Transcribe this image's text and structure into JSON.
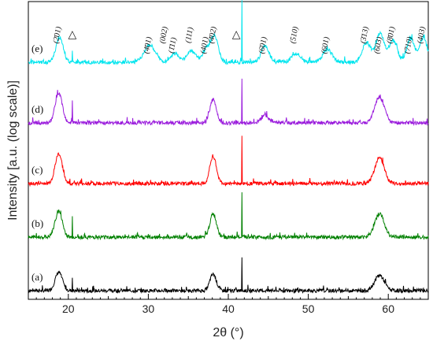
{
  "chart_data": {
    "type": "line",
    "title": "",
    "xlabel": "2θ (°)",
    "ylabel": "Intensity [a.u. (log scale)]",
    "xlim": [
      15,
      65
    ],
    "x_ticks": [
      20,
      30,
      40,
      50,
      60
    ],
    "x_tick_labels": [
      "20",
      "30",
      "40",
      "50",
      "60"
    ],
    "y_ticks": false,
    "grid": false,
    "legend": false,
    "series": [
      {
        "name": "(a)",
        "color": "#000000",
        "peaks": [
          {
            "x": 18.8,
            "h": 0.3,
            "w": 0.45
          },
          {
            "x": 38.1,
            "h": 0.27,
            "w": 0.4
          },
          {
            "x": 58.9,
            "h": 0.25,
            "w": 0.6
          }
        ],
        "spikes": [
          {
            "x": 20.5,
            "h": 0.22
          },
          {
            "x": 41.7,
            "h": 0.55
          }
        ]
      },
      {
        "name": "(b)",
        "color": "#008000",
        "peaks": [
          {
            "x": 18.8,
            "h": 0.42,
            "w": 0.45
          },
          {
            "x": 38.1,
            "h": 0.38,
            "w": 0.4
          },
          {
            "x": 58.9,
            "h": 0.38,
            "w": 0.6
          }
        ],
        "spikes": [
          {
            "x": 20.5,
            "h": 0.36
          },
          {
            "x": 41.7,
            "h": 0.75
          }
        ]
      },
      {
        "name": "(c)",
        "color": "#ff0000",
        "peaks": [
          {
            "x": 18.8,
            "h": 0.48,
            "w": 0.45
          },
          {
            "x": 38.1,
            "h": 0.45,
            "w": 0.4
          },
          {
            "x": 58.9,
            "h": 0.42,
            "w": 0.6
          }
        ],
        "spikes": [
          {
            "x": 41.7,
            "h": 0.75
          }
        ]
      },
      {
        "name": "(d)",
        "color": "#9a1bdc",
        "peaks": [
          {
            "x": 18.8,
            "h": 0.48,
            "w": 0.45
          },
          {
            "x": 38.1,
            "h": 0.38,
            "w": 0.4
          },
          {
            "x": 44.6,
            "h": 0.12,
            "w": 0.5
          },
          {
            "x": 58.9,
            "h": 0.42,
            "w": 0.6
          }
        ],
        "spikes": [
          {
            "x": 20.5,
            "h": 0.38
          },
          {
            "x": 41.7,
            "h": 0.75
          }
        ]
      },
      {
        "name": "(e)",
        "color": "#00e5ee",
        "peaks": [
          {
            "x": 18.9,
            "h": 0.4,
            "w": 0.45
          },
          {
            "x": 30.2,
            "h": 0.28,
            "w": 0.7
          },
          {
            "x": 33.3,
            "h": 0.14,
            "w": 0.5
          },
          {
            "x": 35.4,
            "h": 0.18,
            "w": 0.6
          },
          {
            "x": 37.3,
            "h": 0.22,
            "w": 0.45
          },
          {
            "x": 38.3,
            "h": 0.42,
            "w": 0.45
          },
          {
            "x": 44.6,
            "h": 0.26,
            "w": 0.5
          },
          {
            "x": 48.5,
            "h": 0.14,
            "w": 0.6
          },
          {
            "x": 52.4,
            "h": 0.2,
            "w": 0.6
          },
          {
            "x": 57.3,
            "h": 0.32,
            "w": 0.55
          },
          {
            "x": 59.0,
            "h": 0.48,
            "w": 0.5
          },
          {
            "x": 60.6,
            "h": 0.36,
            "w": 0.5
          },
          {
            "x": 62.8,
            "h": 0.38,
            "w": 0.5
          },
          {
            "x": 64.4,
            "h": 0.4,
            "w": 0.45
          }
        ],
        "spikes": [
          {
            "x": 20.5,
            "h": 0.2
          },
          {
            "x": 41.7,
            "h": 1.0
          }
        ]
      }
    ],
    "peak_labels": [
      {
        "x": 18.9,
        "text": "(2̄01)"
      },
      {
        "x": 30.2,
        "text": "(4̄01)"
      },
      {
        "x": 32.2,
        "text": "(002)"
      },
      {
        "x": 33.3,
        "text": "(1̄11)"
      },
      {
        "x": 35.4,
        "text": "(111)"
      },
      {
        "x": 37.3,
        "text": "(401)"
      },
      {
        "x": 38.3,
        "text": "(4̄02)"
      },
      {
        "x": 44.6,
        "text": "(6̄01)"
      },
      {
        "x": 48.5,
        "text": "(510)"
      },
      {
        "x": 52.4,
        "text": "(601)"
      },
      {
        "x": 57.3,
        "text": "(3̄13)"
      },
      {
        "x": 59.0,
        "text": "(603)"
      },
      {
        "x": 60.6,
        "text": "(8̄01)"
      },
      {
        "x": 62.8,
        "text": "(710)"
      },
      {
        "x": 64.4,
        "text": "(403)"
      }
    ],
    "markers": [
      {
        "x": 20.5,
        "symbol": "△"
      },
      {
        "x": 41.0,
        "symbol": "△"
      }
    ]
  }
}
